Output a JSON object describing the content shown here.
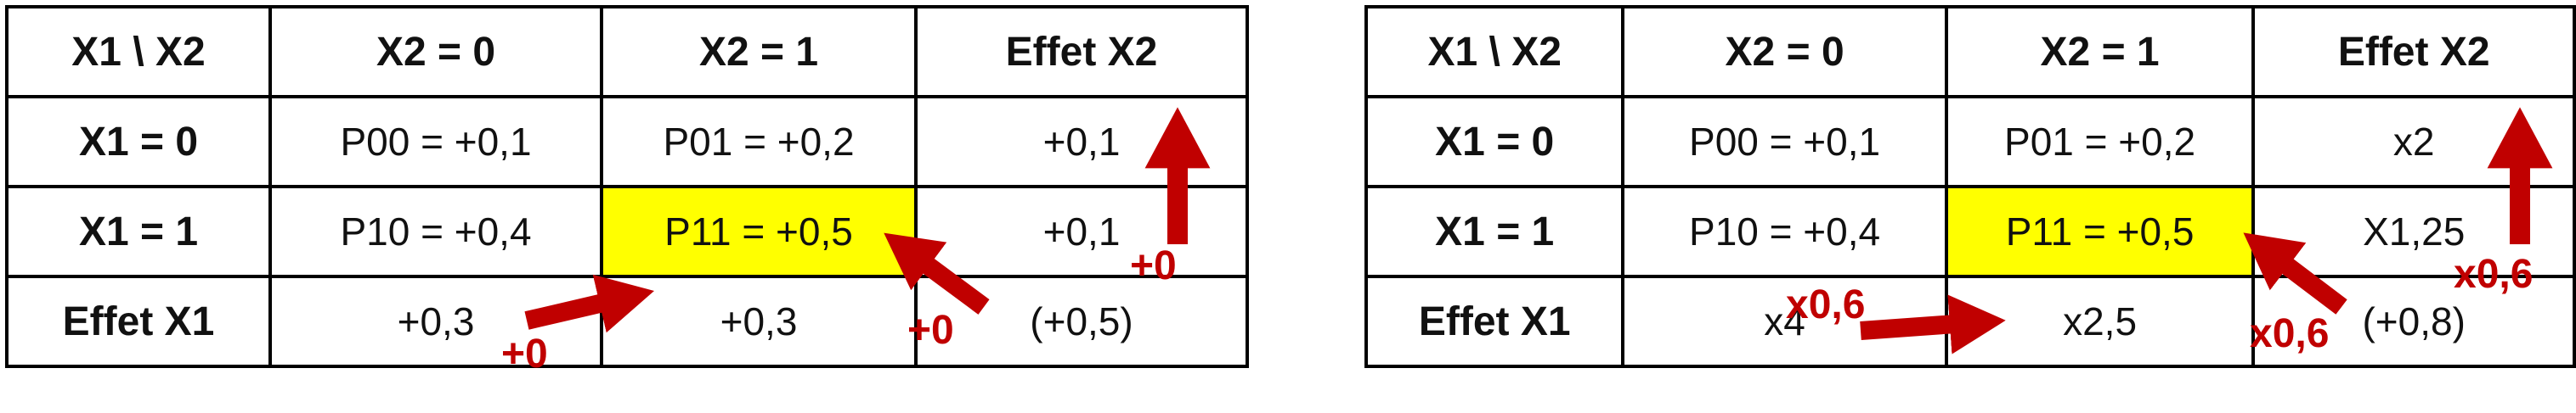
{
  "colors": {
    "highlight": "#ffff00",
    "arrow": "#c00000",
    "border": "#000000"
  },
  "tables": [
    {
      "header": [
        "X1 \\ X2",
        "X2 = 0",
        "X2 = 1",
        "Effet X2"
      ],
      "rows": [
        [
          "X1 = 0",
          "P00 = +0,1",
          "P01 = +0,2",
          "+0,1"
        ],
        [
          "X1 = 1",
          "P10 = +0,4",
          "P11 = +0,5",
          "+0,1"
        ],
        [
          "Effet X1",
          "+0,3",
          "+0,3",
          "(+0,5)"
        ]
      ],
      "annotations": {
        "effet_x2_arrow": "+0",
        "effet_x1_arrow": "+0",
        "interaction_arrow": "+0"
      }
    },
    {
      "header": [
        "X1 \\ X2",
        "X2 = 0",
        "X2 = 1",
        "Effet X2"
      ],
      "rows": [
        [
          "X1 = 0",
          "P00 = +0,1",
          "P01 = +0,2",
          "x2"
        ],
        [
          "X1 = 1",
          "P10 = +0,4",
          "P11 = +0,5",
          "X1,25"
        ],
        [
          "Effet X1",
          "x4",
          "x2,5",
          "(+0,8)"
        ]
      ],
      "annotations": {
        "effet_x2_arrow": "x0,6",
        "effet_x1_arrow": "x0,6",
        "interaction_arrow": "x0,6"
      }
    }
  ]
}
